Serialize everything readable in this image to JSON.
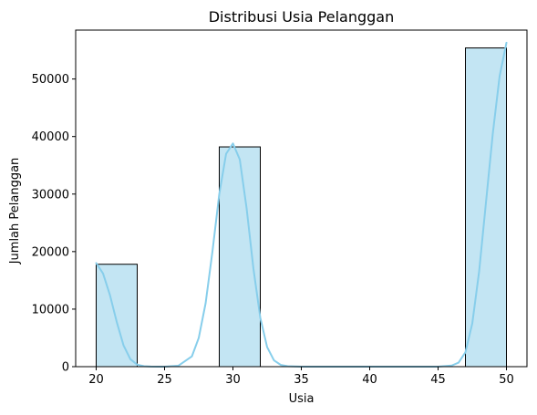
{
  "chart_data": {
    "type": "bar",
    "title": "Distribusi Usia Pelanggan",
    "xlabel": "Usia",
    "ylabel": "Jumlah Pelanggan",
    "xlim": [
      18.5,
      51.5
    ],
    "ylim": [
      0,
      58500
    ],
    "xticks": [
      20,
      25,
      30,
      35,
      40,
      45,
      50
    ],
    "yticks": [
      0,
      10000,
      20000,
      30000,
      40000,
      50000
    ],
    "bins": [
      {
        "start": 20,
        "end": 23,
        "count": 17800
      },
      {
        "start": 23,
        "end": 26,
        "count": 0
      },
      {
        "start": 26,
        "end": 29,
        "count": 0
      },
      {
        "start": 29,
        "end": 32,
        "count": 38200
      },
      {
        "start": 32,
        "end": 35,
        "count": 0
      },
      {
        "start": 35,
        "end": 38,
        "count": 0
      },
      {
        "start": 38,
        "end": 41,
        "count": 0
      },
      {
        "start": 41,
        "end": 44,
        "count": 0
      },
      {
        "start": 44,
        "end": 47,
        "count": 0
      },
      {
        "start": 47,
        "end": 50,
        "count": 55400
      }
    ],
    "kde": {
      "x": [
        20,
        20.5,
        21,
        21.5,
        22,
        22.5,
        23,
        23.5,
        24,
        24.5,
        25,
        26,
        27,
        27.5,
        28,
        28.5,
        29,
        29.5,
        30,
        30.5,
        31,
        31.5,
        32,
        32.5,
        33,
        33.5,
        34,
        35,
        40,
        45,
        46,
        46.5,
        47,
        47.5,
        48,
        48.5,
        49,
        49.5,
        50
      ],
      "y": [
        18000,
        16200,
        12500,
        7800,
        3700,
        1300,
        350,
        80,
        20,
        0,
        0,
        150,
        1800,
        5000,
        11000,
        20000,
        30000,
        37000,
        38800,
        36000,
        27500,
        17000,
        8500,
        3400,
        1100,
        300,
        80,
        0,
        0,
        0,
        200,
        700,
        2500,
        7500,
        16500,
        28500,
        40500,
        50500,
        56300
      ]
    },
    "grid": false,
    "colors": {
      "bar_fill": "#c3e5f3",
      "bar_edge": "#000000",
      "kde_line": "#87ceeb"
    }
  }
}
